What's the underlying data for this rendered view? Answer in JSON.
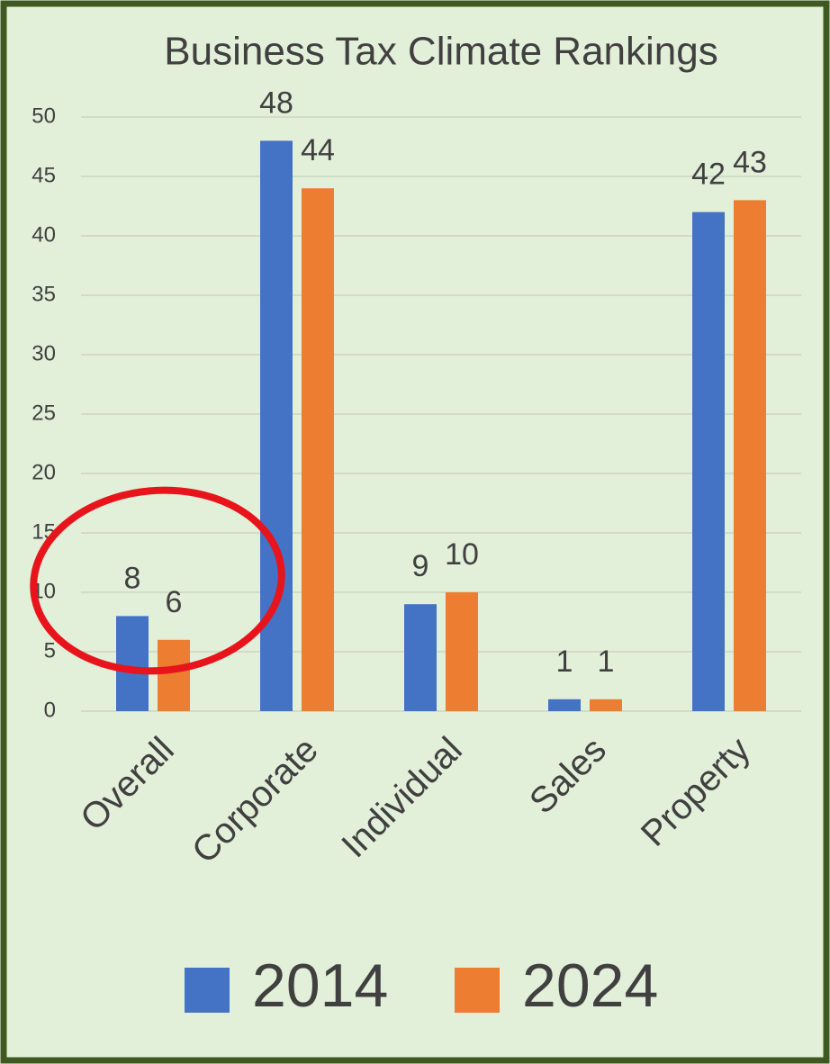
{
  "chart_data": {
    "type": "bar",
    "title": "Business Tax Climate Rankings",
    "categories": [
      "Overall",
      "Corporate",
      "Individual",
      "Sales",
      "Property"
    ],
    "series": [
      {
        "name": "2014",
        "color": "#4472c4",
        "values": [
          8,
          48,
          9,
          1,
          42
        ]
      },
      {
        "name": "2024",
        "color": "#ed7d31",
        "values": [
          6,
          44,
          10,
          1,
          43
        ]
      }
    ],
    "ylim": [
      0,
      50
    ],
    "yticks": [
      0,
      5,
      10,
      15,
      20,
      25,
      30,
      35,
      40,
      45,
      50
    ],
    "grid": true,
    "legend": "bottom"
  }
}
